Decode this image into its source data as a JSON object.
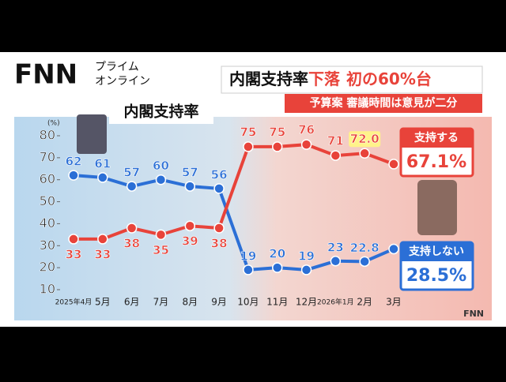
{
  "logo": {
    "brand": "FNN",
    "line1": "プライム",
    "line2": "オンライン"
  },
  "headline": {
    "part1": "内閣支持率",
    "part2": "下落",
    "part3": "初の60%台"
  },
  "subtitle": "予算案 審議時間は意見が二分",
  "corner_logo": "FNN",
  "chart_data": {
    "type": "line",
    "title": "内閣支持率",
    "y_label": "(%)",
    "categories": [
      "2025年4月",
      "5月",
      "6月",
      "7月",
      "8月",
      "9月",
      "10月",
      "11月",
      "12月",
      "2026年1月",
      "2月",
      "3月"
    ],
    "series": [
      {
        "name": "支持しない",
        "color": "#2b6fd6",
        "values": [
          62,
          61,
          57,
          60,
          57,
          56,
          19,
          20,
          19,
          23,
          22.8,
          28.5
        ],
        "value_labels": [
          "62",
          "61",
          "57",
          "60",
          "57",
          "56",
          "19",
          "20",
          "19",
          "23",
          "22.8",
          "28.5%"
        ]
      },
      {
        "name": "支持する",
        "color": "#e8433a",
        "values": [
          33,
          33,
          38,
          35,
          39,
          38,
          75,
          75,
          76,
          71,
          72,
          67.1
        ],
        "value_labels": [
          "33",
          "33",
          "38",
          "35",
          "39",
          "38",
          "75",
          "75",
          "76",
          "71",
          "72.0",
          "67.1%"
        ]
      }
    ],
    "ylim": [
      10,
      80
    ],
    "yticks": [
      10,
      20,
      30,
      40,
      50,
      60,
      70,
      80
    ],
    "grid": false
  }
}
